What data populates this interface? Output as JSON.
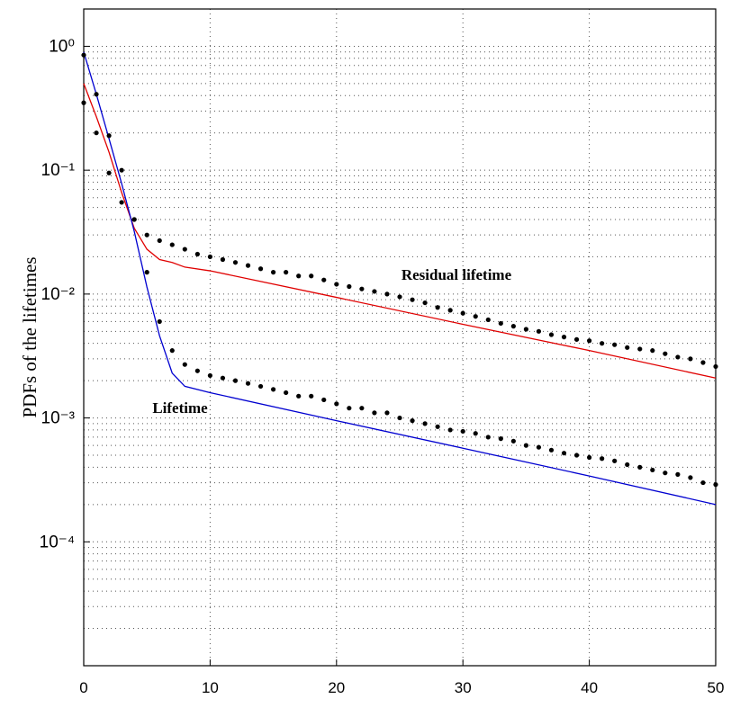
{
  "chart_data": {
    "type": "line",
    "ylabel": "PDFs of the lifetimes",
    "xlim": [
      0,
      50
    ],
    "xticks": [
      0,
      10,
      20,
      30,
      40,
      50
    ],
    "ylim": [
      1e-05,
      2
    ],
    "log_y": true,
    "yticks": [
      {
        "value": 1,
        "label": "10⁰"
      },
      {
        "value": 0.1,
        "label": "10⁻¹"
      },
      {
        "value": 0.01,
        "label": "10⁻²"
      },
      {
        "value": 0.001,
        "label": "10⁻³"
      },
      {
        "value": 0.0001,
        "label": "10⁻⁴"
      }
    ],
    "grid": true,
    "series": [
      {
        "name": "Residual lifetime",
        "color": "#e00000",
        "style": "line",
        "x": [
          0,
          1,
          2,
          3,
          4,
          5,
          6,
          7,
          8,
          10,
          20,
          30,
          40,
          50
        ],
        "values": [
          0.5,
          0.27,
          0.14,
          0.066,
          0.034,
          0.023,
          0.019,
          0.018,
          0.0165,
          0.0154,
          0.0094,
          0.0057,
          0.0035,
          0.0021
        ]
      },
      {
        "name": "Lifetime",
        "color": "#0000d0",
        "style": "line",
        "x": [
          0,
          1,
          2,
          3,
          4,
          5,
          6,
          7,
          8,
          10,
          20,
          30,
          40,
          50
        ],
        "values": [
          0.9,
          0.41,
          0.18,
          0.078,
          0.032,
          0.0114,
          0.0046,
          0.0023,
          0.0018,
          0.0016,
          0.00095,
          0.00057,
          0.00034,
          0.0002
        ]
      },
      {
        "color": "#000000",
        "style": "dots",
        "x": [
          0,
          1,
          2,
          3,
          4,
          5,
          6,
          7,
          8,
          9,
          10,
          11,
          12,
          13,
          14,
          15,
          16,
          17,
          18,
          19,
          20,
          21,
          22,
          23,
          24,
          25,
          26,
          27,
          28,
          29,
          30,
          31,
          32,
          33,
          34,
          35,
          36,
          37,
          38,
          39,
          40,
          41,
          42,
          43,
          44,
          45,
          46,
          47,
          48,
          49,
          50
        ],
        "values": [
          0.35,
          0.2,
          0.095,
          0.055,
          0.04,
          0.03,
          0.027,
          0.025,
          0.023,
          0.021,
          0.02,
          0.019,
          0.018,
          0.017,
          0.016,
          0.015,
          0.015,
          0.014,
          0.014,
          0.013,
          0.012,
          0.0115,
          0.011,
          0.0105,
          0.01,
          0.0095,
          0.009,
          0.0085,
          0.0078,
          0.0074,
          0.007,
          0.0066,
          0.0062,
          0.0058,
          0.0055,
          0.0052,
          0.005,
          0.0047,
          0.0045,
          0.0043,
          0.0042,
          0.004,
          0.0039,
          0.0037,
          0.0036,
          0.0035,
          0.0033,
          0.0031,
          0.003,
          0.0028,
          0.0026
        ]
      },
      {
        "color": "#000000",
        "style": "dots",
        "x": [
          0,
          1,
          2,
          3,
          4,
          5,
          6,
          7,
          8,
          9,
          10,
          11,
          12,
          13,
          14,
          15,
          16,
          17,
          18,
          19,
          20,
          21,
          22,
          23,
          24,
          25,
          26,
          27,
          28,
          29,
          30,
          31,
          32,
          33,
          34,
          35,
          36,
          37,
          38,
          39,
          40,
          41,
          42,
          43,
          44,
          45,
          46,
          47,
          48,
          49,
          50
        ],
        "values": [
          0.85,
          0.41,
          0.19,
          0.1,
          0.04,
          0.015,
          0.006,
          0.0035,
          0.0027,
          0.0024,
          0.0022,
          0.0021,
          0.002,
          0.0019,
          0.0018,
          0.0017,
          0.0016,
          0.0015,
          0.0015,
          0.0014,
          0.0013,
          0.0012,
          0.0012,
          0.0011,
          0.0011,
          0.001,
          0.00095,
          0.0009,
          0.00085,
          0.0008,
          0.00078,
          0.00075,
          0.0007,
          0.00068,
          0.00065,
          0.0006,
          0.00058,
          0.00055,
          0.00052,
          0.0005,
          0.00048,
          0.00047,
          0.00045,
          0.00042,
          0.0004,
          0.00038,
          0.00036,
          0.00035,
          0.00033,
          0.0003,
          0.00029
        ]
      }
    ]
  }
}
